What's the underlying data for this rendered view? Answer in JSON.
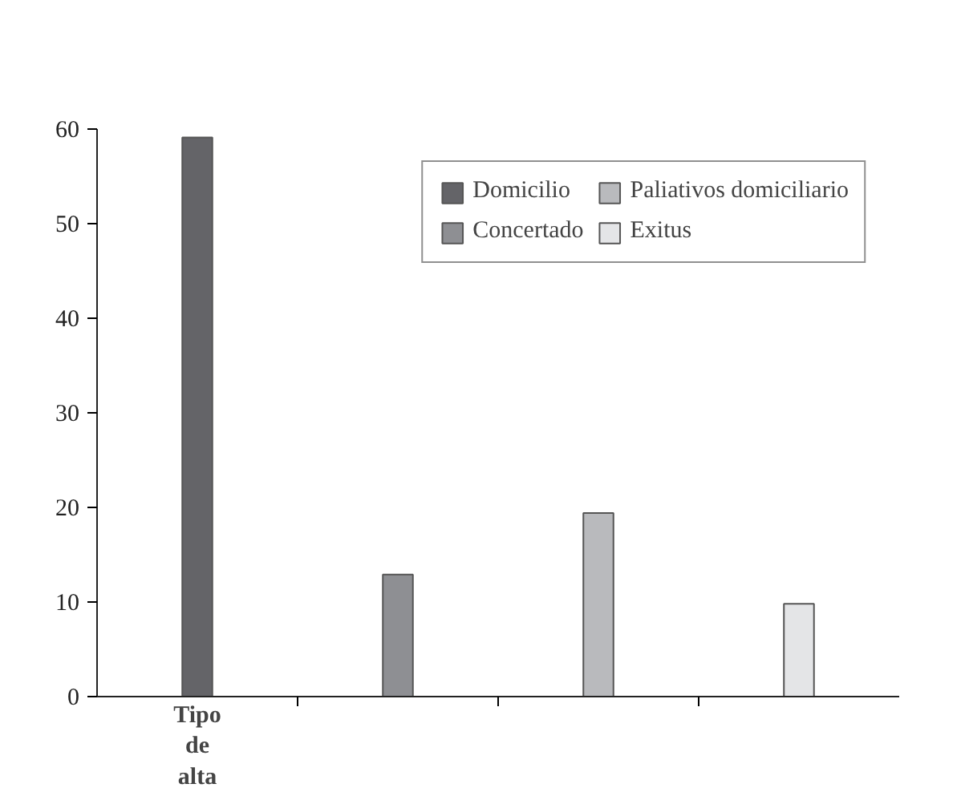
{
  "chart_data": {
    "type": "bar",
    "categories": [
      "Tipo de alta",
      null,
      null,
      null
    ],
    "series": [
      {
        "name": "Domicilio",
        "color": "#646468",
        "values": [
          59.1,
          null,
          null,
          null
        ]
      },
      {
        "name": "Concertado",
        "color": "#8e8f93",
        "values": [
          null,
          12.9,
          null,
          null
        ]
      },
      {
        "name": "Paliativos domiciliario",
        "color": "#b9babd",
        "values": [
          null,
          null,
          19.4,
          null
        ]
      },
      {
        "name": "Exitus",
        "color": "#e4e5e7",
        "values": [
          null,
          null,
          null,
          9.8
        ]
      }
    ],
    "ylim": [
      0,
      60
    ],
    "yticks": [
      0,
      10,
      20,
      30,
      40,
      50,
      60
    ],
    "grid": false,
    "legend": "top right"
  }
}
